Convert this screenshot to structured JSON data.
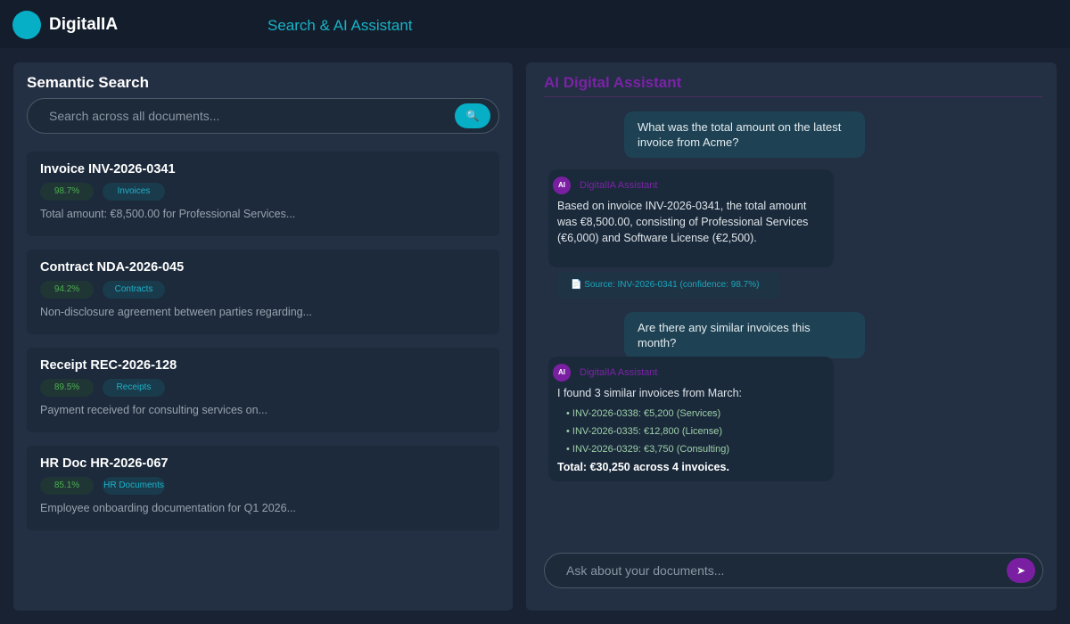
{
  "header": {
    "brand": "DigitalIA",
    "subtitle": "Search & AI Assistant"
  },
  "colors": {
    "accent": "#06aec6",
    "assistant": "#7b1fa2",
    "background": "#192232"
  },
  "search": {
    "title": "Semantic Search",
    "placeholder": "Search across all documents...",
    "button_icon": "search-icon",
    "button_glyph": "🔍"
  },
  "results": [
    {
      "title": "Invoice INV-2026-0341",
      "score": "98.7%",
      "category": "Invoices",
      "snippet": "Total amount: €8,500.00 for Professional Services..."
    },
    {
      "title": "Contract NDA-2026-045",
      "score": "94.2%",
      "category": "Contracts",
      "snippet": "Non-disclosure agreement between parties regarding..."
    },
    {
      "title": "Receipt REC-2026-128",
      "score": "89.5%",
      "category": "Receipts",
      "snippet": "Payment received for consulting services on..."
    },
    {
      "title": "HR Doc HR-2026-067",
      "score": "85.1%",
      "category": "HR Documents",
      "snippet": "Employee onboarding documentation for Q1 2026..."
    }
  ],
  "assistant": {
    "title": "AI Digital Assistant",
    "avatar": "AI",
    "name": "DigitalIA Assistant",
    "messages": [
      {
        "role": "user",
        "text": "What was the total amount on the latest invoice from Acme?"
      },
      {
        "role": "assistant",
        "text": "Based on invoice INV-2026-0341, the total amount was €8,500.00, consisting of Professional Services (€6,000) and Software License (€2,500).",
        "source": "📄 Source: INV-2026-0341 (confidence: 98.7%)"
      },
      {
        "role": "user",
        "text": "Are there any similar invoices this month?"
      },
      {
        "role": "assistant",
        "text": "I found 3 similar invoices from March:",
        "items": [
          "• INV-2026-0338: €5,200 (Services)",
          "• INV-2026-0335: €12,800 (License)",
          "• INV-2026-0329: €3,750 (Consulting)"
        ],
        "total": "Total: €30,250 across 4 invoices."
      }
    ],
    "input_placeholder": "Ask about your documents...",
    "send_glyph": "➤"
  }
}
